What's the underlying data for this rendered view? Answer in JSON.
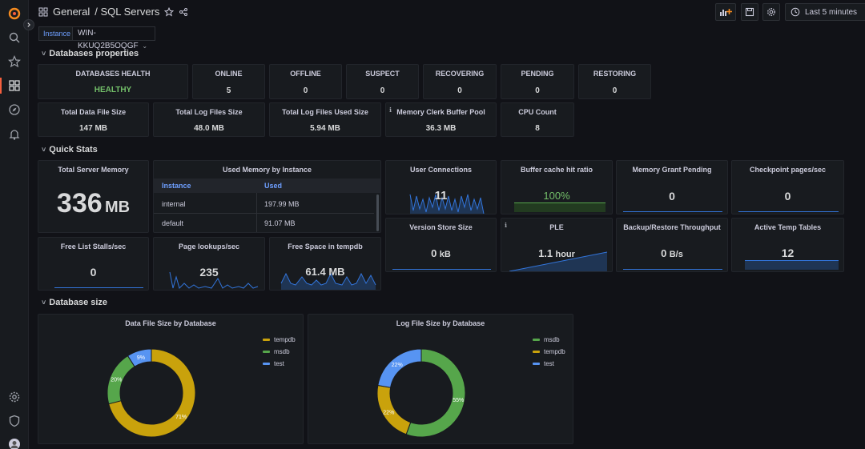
{
  "topbar": {
    "folder": "General",
    "dashboard": "/ SQL Servers",
    "time_range": "Last 5 minutes"
  },
  "variable": {
    "label": "Instance",
    "value": "WIN-KKUQ2B5OQGF"
  },
  "rows": {
    "db_properties": "Databases properties",
    "quick_stats": "Quick Stats",
    "db_size": "Database size"
  },
  "health": {
    "title": "DATABASES HEALTH",
    "value": "HEALTHY",
    "online_title": "ONLINE",
    "online": "5",
    "offline_title": "OFFLINE",
    "offline": "0",
    "suspect_title": "SUSPECT",
    "suspect": "0",
    "recovering_title": "RECOVERING",
    "recovering": "0",
    "pending_title": "PENDING",
    "pending": "0",
    "restoring_title": "RESTORING",
    "restoring": "0"
  },
  "sizes": {
    "data_title": "Total Data File Size",
    "data": "147 MB",
    "log_title": "Total Log Files Size",
    "log": "48.0 MB",
    "logused_title": "Total Log Files Used Size",
    "logused": "5.94 MB",
    "buffer_title": "Memory Clerk Buffer Pool",
    "buffer": "36.3 MB",
    "cpu_title": "CPU Count",
    "cpu": "8"
  },
  "quick": {
    "tsm_title": "Total Server Memory",
    "tsm_num": "336",
    "tsm_unit": "MB",
    "umi_title": "Used Memory by Instance",
    "umi_col_instance": "Instance",
    "umi_col_used": "Used",
    "umi_rows": [
      {
        "instance": "internal",
        "used": "197.99 MB"
      },
      {
        "instance": "default",
        "used": "91.07 MB"
      }
    ],
    "uc_title": "User Connections",
    "uc": "11",
    "bch_title": "Buffer cache hit ratio",
    "bch": "100%",
    "mgp_title": "Memory Grant Pending",
    "mgp": "0",
    "cps_title": "Checkpoint pages/sec",
    "cps": "0",
    "fls_title": "Free List Stalls/sec",
    "fls": "0",
    "pl_title": "Page lookups/sec",
    "pl": "235",
    "fst_title": "Free Space in tempdb",
    "fst": "61.4 MB",
    "vss_title": "Version Store Size",
    "vss_num": "0",
    "vss_unit": "kB",
    "ple_title": "PLE",
    "ple_num": "1.1",
    "ple_unit": "hour",
    "brt_title": "Backup/Restore Throughput",
    "brt_num": "0",
    "brt_unit": "B/s",
    "att_title": "Active Temp Tables",
    "att": "12"
  },
  "chart_data": [
    {
      "type": "pie",
      "title": "Data File Size by Database",
      "categories": [
        "tempdb",
        "msdb",
        "test"
      ],
      "values": [
        71,
        20,
        9
      ],
      "labels": [
        "71%",
        "20%",
        "9%"
      ],
      "colors": [
        "#c9a20c",
        "#56a64b",
        "#5794f2"
      ]
    },
    {
      "type": "pie",
      "title": "Log File Size by Database",
      "categories": [
        "msdb",
        "tempdb",
        "test"
      ],
      "values": [
        55,
        22,
        22
      ],
      "labels": [
        "55%",
        "22%",
        "22%"
      ],
      "colors": [
        "#56a64b",
        "#c9a20c",
        "#5794f2"
      ]
    }
  ],
  "colors": {
    "green": "#73bf69",
    "blue": "#6e9fff",
    "accent": "#f55f3e"
  }
}
